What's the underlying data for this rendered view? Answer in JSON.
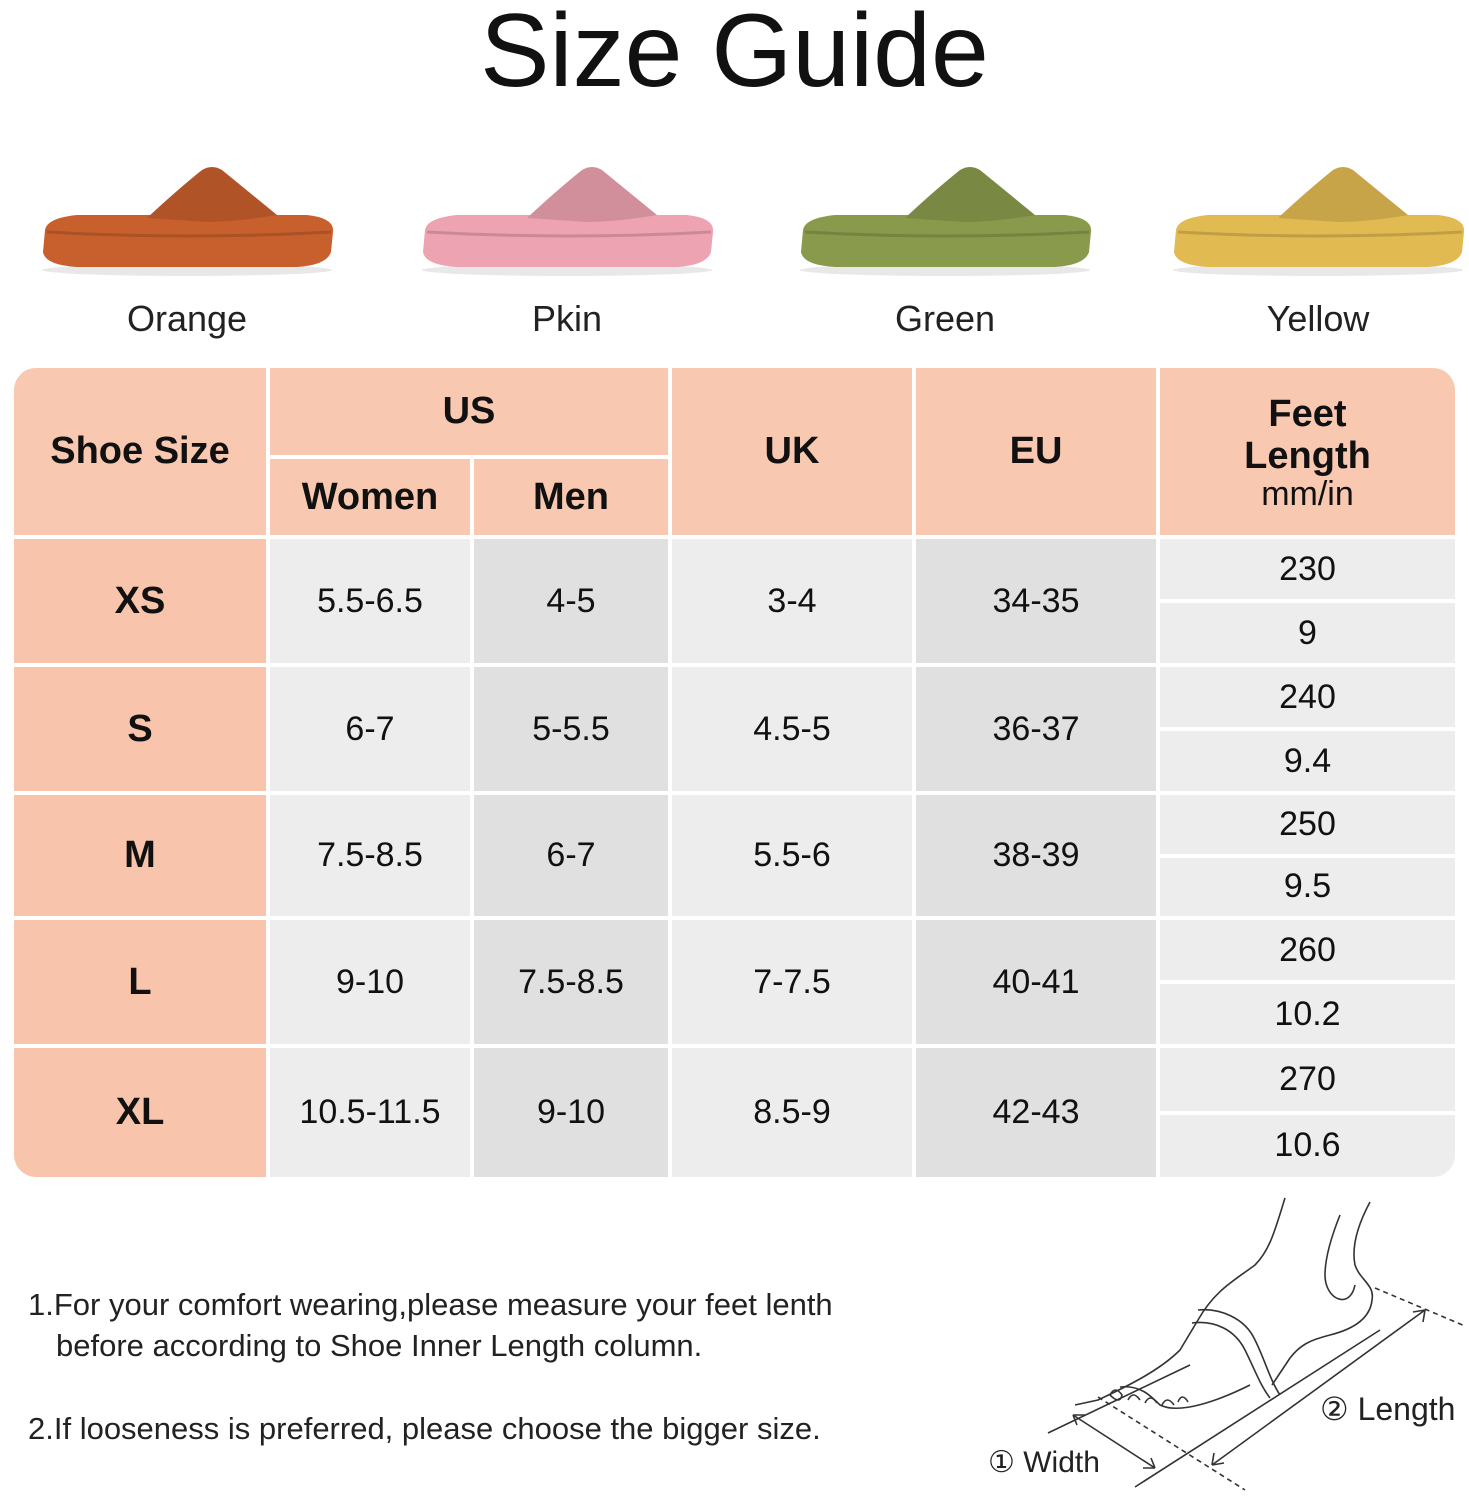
{
  "title": "Size Guide",
  "colors": [
    {
      "label": "Orange",
      "hex": "#c8602e"
    },
    {
      "label": "Pkin",
      "hex": "#eda3b1"
    },
    {
      "label": "Green",
      "hex": "#8a9a4c"
    },
    {
      "label": "Yellow",
      "hex": "#e2ba52"
    }
  ],
  "table": {
    "headers": {
      "shoe_size": "Shoe Size",
      "us": "US",
      "women": "Women",
      "men": "Men",
      "uk": "UK",
      "eu": "EU",
      "feet_length": "Feet Length",
      "feet_unit": "mm/in"
    },
    "rows": [
      {
        "size": "XS",
        "women": "5.5-6.5",
        "men": "4-5",
        "uk": "3-4",
        "eu": "34-35",
        "mm": "230",
        "in": "9"
      },
      {
        "size": "S",
        "women": "6-7",
        "men": "5-5.5",
        "uk": "4.5-5",
        "eu": "36-37",
        "mm": "240",
        "in": "9.4"
      },
      {
        "size": "M",
        "women": "7.5-8.5",
        "men": "6-7",
        "uk": "5.5-6",
        "eu": "38-39",
        "mm": "250",
        "in": "9.5"
      },
      {
        "size": "L",
        "women": "9-10",
        "men": "7.5-8.5",
        "uk": "7-7.5",
        "eu": "40-41",
        "mm": "260",
        "in": "10.2"
      },
      {
        "size": "XL",
        "women": "10.5-11.5",
        "men": "9-10",
        "uk": "8.5-9",
        "eu": "42-43",
        "mm": "270",
        "in": "10.6"
      }
    ]
  },
  "notes": [
    "1.For your comfort wearing,please measure your feet lenth",
    "before according to Shoe Inner Length column.",
    "2.If looseness is preferred, please choose the bigger size."
  ],
  "diagram": {
    "width_label": "① Width",
    "length_label": "② Length"
  }
}
